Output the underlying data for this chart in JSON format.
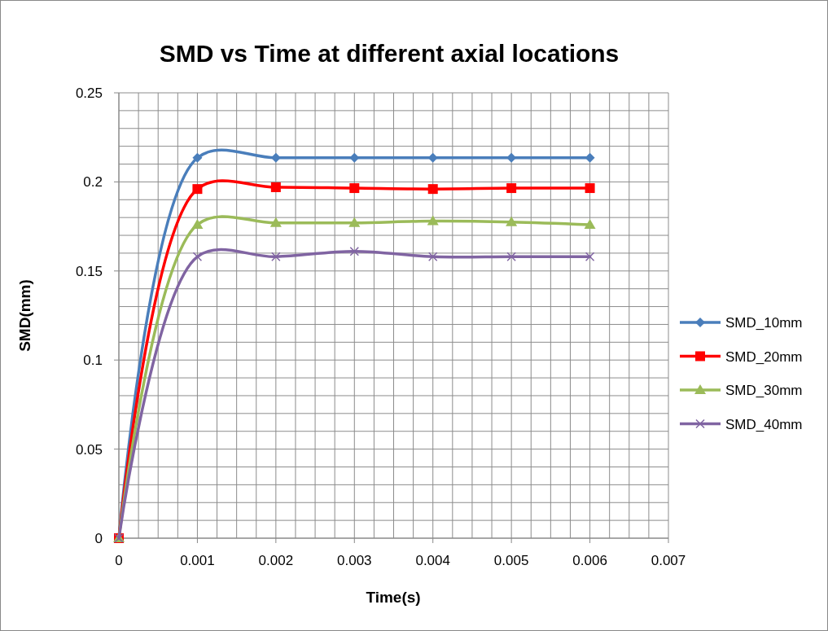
{
  "chart_data": {
    "type": "line",
    "title": "SMD vs Time at different axial locations",
    "xlabel": "Time(s)",
    "ylabel": "SMD(mm)",
    "x": [
      0,
      0.001,
      0.002,
      0.003,
      0.004,
      0.005,
      0.006
    ],
    "series": [
      {
        "name": "SMD_10mm",
        "color": "#4a7ebb",
        "marker": "diamond",
        "values": [
          0,
          0.2135,
          0.2135,
          0.2135,
          0.2135,
          0.2135,
          0.2135
        ]
      },
      {
        "name": "SMD_20mm",
        "color": "#ff0000",
        "marker": "square",
        "values": [
          0,
          0.196,
          0.197,
          0.1965,
          0.196,
          0.1965,
          0.1965
        ]
      },
      {
        "name": "SMD_30mm",
        "color": "#9bbb59",
        "marker": "triangle",
        "values": [
          0,
          0.176,
          0.177,
          0.177,
          0.178,
          0.1775,
          0.176
        ]
      },
      {
        "name": "SMD_40mm",
        "color": "#8064a2",
        "marker": "cross",
        "values": [
          0,
          0.158,
          0.158,
          0.161,
          0.158,
          0.158,
          0.158
        ]
      }
    ],
    "xlim": [
      0,
      0.007
    ],
    "xticks": [
      0,
      {
        "value": 0.00025,
        "label": null
      },
      {
        "value": 0.0005,
        "label": null
      },
      {
        "value": 0.00075,
        "label": null
      },
      0.001,
      {
        "value": 0.00125,
        "label": null
      },
      {
        "value": 0.0015,
        "label": null
      },
      {
        "value": 0.00175,
        "label": null
      },
      0.002,
      {
        "value": 0.00225,
        "label": null
      },
      {
        "value": 0.0025,
        "label": null
      },
      {
        "value": 0.00275,
        "label": null
      },
      0.003,
      {
        "value": 0.00325,
        "label": null
      },
      {
        "value": 0.0035,
        "label": null
      },
      {
        "value": 0.00375,
        "label": null
      },
      0.004,
      {
        "value": 0.00425,
        "label": null
      },
      {
        "value": 0.0045,
        "label": null
      },
      {
        "value": 0.00475,
        "label": null
      },
      0.005,
      {
        "value": 0.00525,
        "label": null
      },
      {
        "value": 0.0055,
        "label": null
      },
      {
        "value": 0.00575,
        "label": null
      },
      0.006,
      {
        "value": 0.00625,
        "label": null
      },
      {
        "value": 0.0065,
        "label": null
      },
      {
        "value": 0.00675,
        "label": null
      },
      0.007
    ],
    "ylim": [
      0,
      0.25
    ],
    "yticks": [
      0,
      {
        "value": 0.01,
        "label": null
      },
      {
        "value": 0.02,
        "label": null
      },
      {
        "value": 0.03,
        "label": null
      },
      {
        "value": 0.04,
        "label": null
      },
      0.05,
      {
        "value": 0.06,
        "label": null
      },
      {
        "value": 0.07,
        "label": null
      },
      {
        "value": 0.08,
        "label": null
      },
      {
        "value": 0.09,
        "label": null
      },
      0.1,
      {
        "value": 0.11,
        "label": null
      },
      {
        "value": 0.12,
        "label": null
      },
      {
        "value": 0.13,
        "label": null
      },
      {
        "value": 0.14,
        "label": null
      },
      0.15,
      {
        "value": 0.16,
        "label": null
      },
      {
        "value": 0.17,
        "label": null
      },
      {
        "value": 0.18,
        "label": null
      },
      {
        "value": 0.19,
        "label": null
      },
      0.2,
      {
        "value": 0.21,
        "label": null
      },
      {
        "value": 0.22,
        "label": null
      },
      {
        "value": 0.23,
        "label": null
      },
      {
        "value": 0.24,
        "label": null
      },
      0.25
    ],
    "grid": true,
    "legend": "right"
  }
}
